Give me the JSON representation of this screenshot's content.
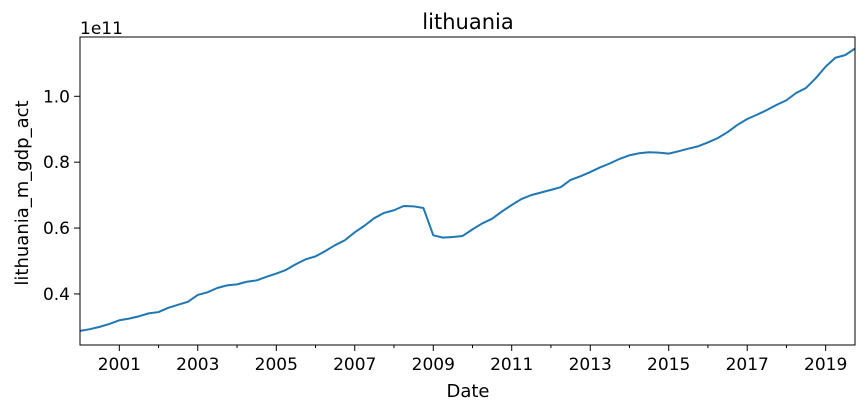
{
  "chart_data": {
    "type": "line",
    "title": "lithuania",
    "xlabel": "Date",
    "ylabel": "lithuania_m_gdp_act",
    "y_offset_label": "1e11",
    "xlim": [
      "2000-01-01",
      "2019-10-01"
    ],
    "ylim": [
      0.245,
      1.18
    ],
    "x_major_ticks": [
      "2001",
      "2003",
      "2005",
      "2007",
      "2009",
      "2011",
      "2013",
      "2015",
      "2017",
      "2019"
    ],
    "x_minor_ticks": [
      "2002",
      "2004",
      "2006",
      "2008",
      "2010",
      "2012",
      "2014",
      "2016",
      "2018"
    ],
    "y_ticks": [
      "0.4",
      "0.6",
      "0.8",
      "1.0"
    ],
    "grid": false,
    "series": [
      {
        "color": "#1f77b4",
        "x": [
          "2000-01-01",
          "2000-04-01",
          "2000-07-01",
          "2000-10-01",
          "2001-01-01",
          "2001-04-01",
          "2001-07-01",
          "2001-10-01",
          "2002-01-01",
          "2002-04-01",
          "2002-07-01",
          "2002-10-01",
          "2003-01-01",
          "2003-04-01",
          "2003-07-01",
          "2003-10-01",
          "2004-01-01",
          "2004-04-01",
          "2004-07-01",
          "2004-10-01",
          "2005-01-01",
          "2005-04-01",
          "2005-07-01",
          "2005-10-01",
          "2006-01-01",
          "2006-04-01",
          "2006-07-01",
          "2006-10-01",
          "2007-01-01",
          "2007-04-01",
          "2007-07-01",
          "2007-10-01",
          "2008-01-01",
          "2008-04-01",
          "2008-07-01",
          "2008-10-01",
          "2009-01-01",
          "2009-04-01",
          "2009-07-01",
          "2009-10-01",
          "2010-01-01",
          "2010-04-01",
          "2010-07-01",
          "2010-10-01",
          "2011-01-01",
          "2011-04-01",
          "2011-07-01",
          "2011-10-01",
          "2012-01-01",
          "2012-04-01",
          "2012-07-01",
          "2012-10-01",
          "2013-01-01",
          "2013-04-01",
          "2013-07-01",
          "2013-10-01",
          "2014-01-01",
          "2014-04-01",
          "2014-07-01",
          "2014-10-01",
          "2015-01-01",
          "2015-04-01",
          "2015-07-01",
          "2015-10-01",
          "2016-01-01",
          "2016-04-01",
          "2016-07-01",
          "2016-10-01",
          "2017-01-01",
          "2017-04-01",
          "2017-07-01",
          "2017-10-01",
          "2018-01-01",
          "2018-04-01",
          "2018-07-01",
          "2018-10-01",
          "2019-01-01",
          "2019-04-01",
          "2019-07-01",
          "2019-10-01"
        ],
        "values": [
          0.288,
          0.293,
          0.3,
          0.309,
          0.32,
          0.325,
          0.332,
          0.341,
          0.345,
          0.358,
          0.367,
          0.376,
          0.397,
          0.405,
          0.418,
          0.426,
          0.429,
          0.437,
          0.441,
          0.452,
          0.462,
          0.473,
          0.49,
          0.505,
          0.514,
          0.53,
          0.548,
          0.563,
          0.587,
          0.607,
          0.63,
          0.646,
          0.654,
          0.667,
          0.666,
          0.661,
          0.578,
          0.571,
          0.573,
          0.576,
          0.596,
          0.614,
          0.628,
          0.65,
          0.67,
          0.688,
          0.7,
          0.708,
          0.716,
          0.724,
          0.746,
          0.757,
          0.77,
          0.784,
          0.796,
          0.81,
          0.821,
          0.827,
          0.83,
          0.829,
          0.826,
          0.833,
          0.841,
          0.848,
          0.86,
          0.873,
          0.891,
          0.913,
          0.931,
          0.944,
          0.958,
          0.974,
          0.988,
          1.01,
          1.025,
          1.055,
          1.09,
          1.117,
          1.125,
          1.145
        ]
      }
    ]
  }
}
